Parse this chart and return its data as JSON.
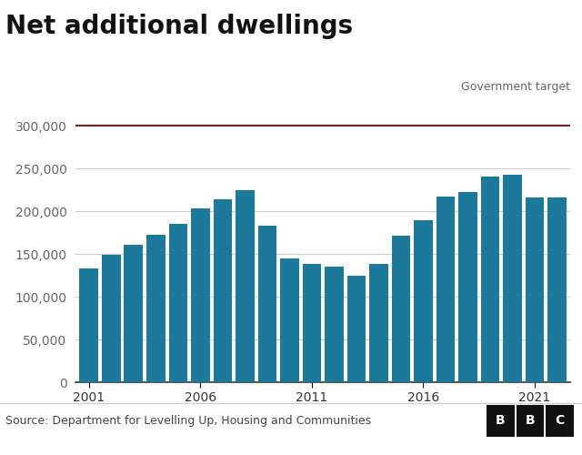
{
  "title": "Net additional dwellings",
  "years": [
    2001,
    2002,
    2003,
    2004,
    2005,
    2006,
    2007,
    2008,
    2009,
    2010,
    2011,
    2012,
    2013,
    2014,
    2015,
    2016,
    2017,
    2018,
    2019,
    2020,
    2021,
    2022
  ],
  "values": [
    133000,
    149000,
    161000,
    172000,
    185000,
    203000,
    214000,
    225000,
    183000,
    145000,
    138000,
    135000,
    125000,
    138000,
    171000,
    190000,
    217000,
    222000,
    241000,
    243000,
    216000,
    216000
  ],
  "bar_color": "#1b7a9b",
  "government_target": 300000,
  "target_line_color": "#7b1d21",
  "target_label": "Government target",
  "ylim": [
    0,
    330000
  ],
  "ytick_values": [
    0,
    50000,
    100000,
    150000,
    200000,
    250000,
    300000
  ],
  "xtick_years": [
    2001,
    2006,
    2011,
    2016,
    2021
  ],
  "source_text": "Source: Department for Levelling Up, Housing and Communities",
  "background_color": "#ffffff",
  "grid_color": "#cccccc",
  "title_fontsize": 20,
  "tick_fontsize": 10,
  "source_fontsize": 9
}
